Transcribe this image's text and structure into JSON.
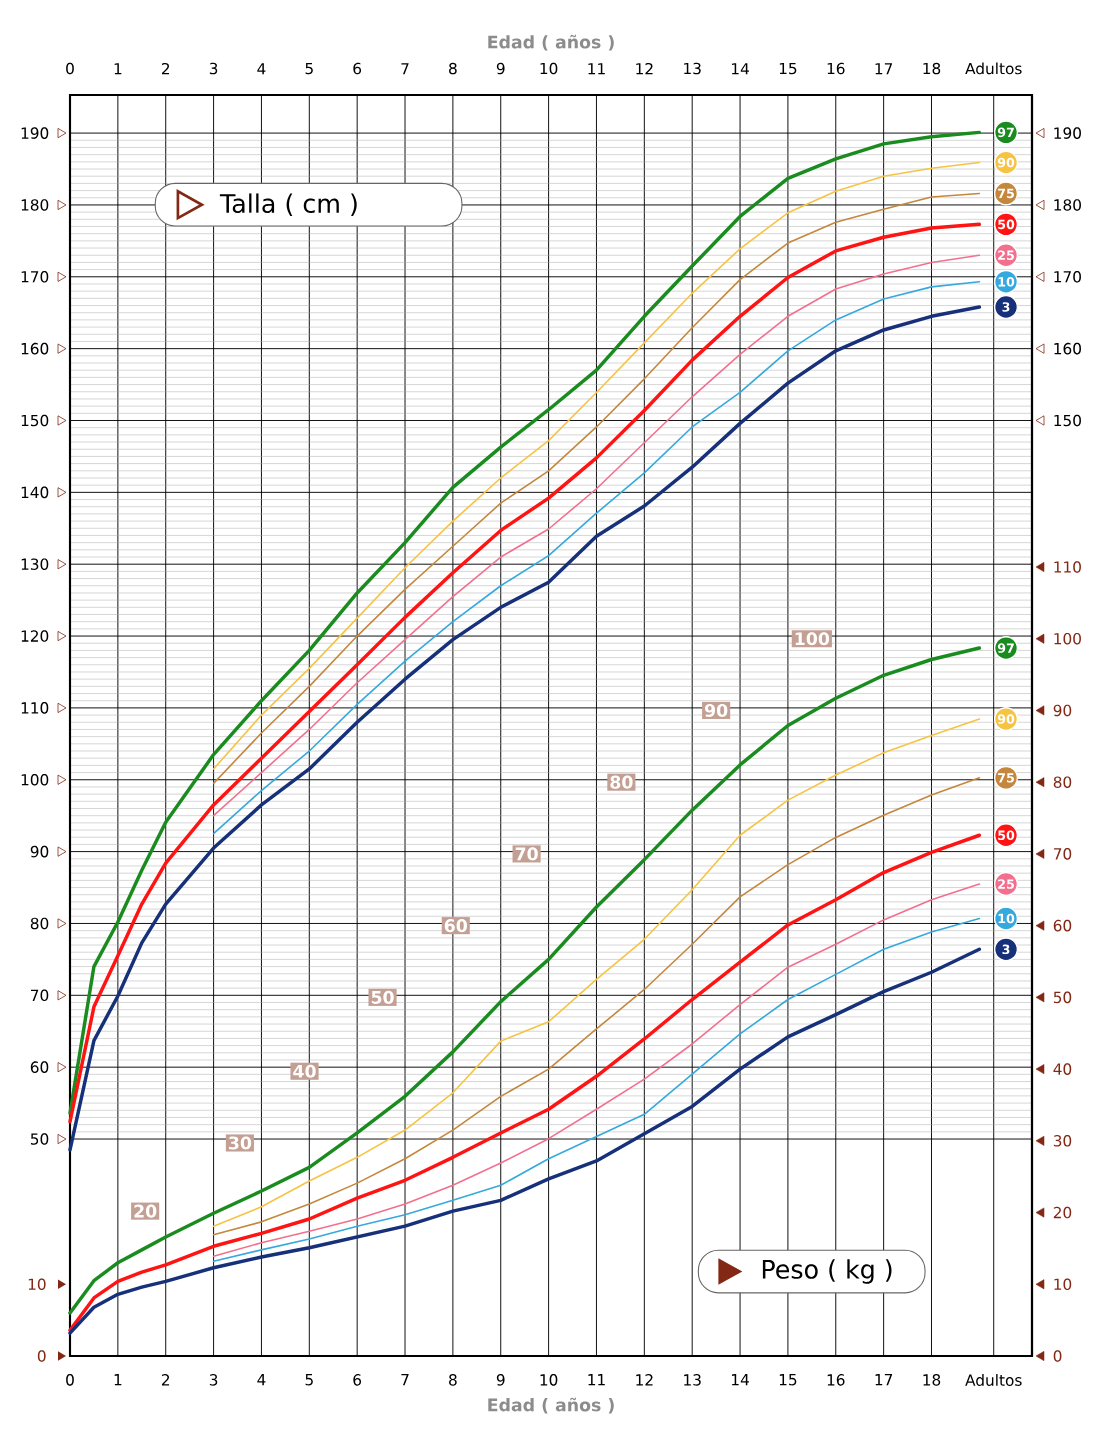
{
  "chart_data": {
    "type": "line",
    "xlabel": "Edad ( años )",
    "x2label": "Edad ( años )",
    "ylabel": "Talla ( cm )",
    "y2label": "Peso ( kg )",
    "xlim": [
      0,
      20.1
    ],
    "x2lim": [
      0,
      20.1
    ],
    "xticks": [
      0,
      1,
      2,
      3,
      4,
      5,
      6,
      7,
      8,
      9,
      10,
      11,
      12,
      13,
      14,
      15,
      16,
      17,
      18,
      {
        "value": 19.3,
        "label": "Adultos"
      }
    ],
    "x2ticks": [
      0,
      1,
      2,
      3,
      4,
      5,
      6,
      7,
      8,
      9,
      10,
      11,
      12,
      13,
      14,
      15,
      16,
      17,
      18,
      {
        "value": 19.3,
        "label": "Adultos"
      }
    ],
    "ylim": [
      19.8,
      195.3
    ],
    "yticks": [
      50,
      60,
      70,
      80,
      90,
      100,
      110,
      120,
      130,
      140,
      150,
      160,
      170,
      180,
      190
    ],
    "y2lim": [
      0,
      175.8
    ],
    "y2ticks": [
      0,
      10,
      20,
      30,
      40,
      50,
      60,
      70,
      80,
      90,
      100,
      110
    ],
    "y3lim": [
      19.8,
      195.3
    ],
    "y3ticks": [
      150,
      160,
      170,
      180,
      190
    ],
    "grid": true,
    "annotations": [
      "20",
      "30",
      "40",
      "50",
      "60",
      "70",
      "80",
      "90",
      "100",
      "0",
      "10"
    ],
    "series": [
      {
        "name": "97",
        "color": "#1a8c1f",
        "x": [
          0,
          0.5,
          1,
          1.5,
          2,
          3,
          4,
          5,
          6,
          7,
          8,
          9,
          10,
          11,
          12,
          13,
          14,
          15,
          16,
          17,
          18,
          19
        ],
        "values": [
          53.6,
          74,
          80.2,
          87.4,
          94.1,
          103.5,
          111,
          118,
          126,
          133,
          140.7,
          146.3,
          151.5,
          157,
          164.5,
          171.5,
          178.4,
          183.7,
          186.4,
          188.5,
          189.5,
          190.1
        ]
      },
      {
        "name": "90",
        "color": "#f7c343",
        "x": [
          3,
          4,
          5,
          6,
          7,
          8,
          9,
          10,
          11,
          12,
          13,
          14,
          15,
          16,
          17,
          18,
          19
        ],
        "values": [
          101.5,
          109,
          115.5,
          122.5,
          129.5,
          136,
          142,
          147.2,
          153.9,
          160.8,
          167.7,
          173.9,
          178.9,
          181.9,
          184,
          185.1,
          185.9
        ]
      },
      {
        "name": "75",
        "color": "#c4873d",
        "x": [
          3,
          4,
          5,
          6,
          7,
          8,
          9,
          10,
          11,
          12,
          13,
          14,
          15,
          16,
          17,
          18,
          19
        ],
        "values": [
          99.5,
          106.5,
          113,
          120,
          126.5,
          132.5,
          138.5,
          143,
          149.1,
          155.8,
          162.9,
          169.6,
          174.7,
          177.6,
          179.4,
          181.1,
          181.6
        ]
      },
      {
        "name": "50",
        "color": "#ff1414",
        "x": [
          0,
          0.5,
          1,
          1.5,
          2,
          3,
          4,
          5,
          6,
          7,
          8,
          9,
          10,
          11,
          12,
          13,
          14,
          15,
          16,
          17,
          18,
          19
        ],
        "values": [
          52.4,
          68.4,
          75.5,
          82.7,
          88.4,
          96.5,
          103,
          109.5,
          116,
          122.6,
          128.8,
          134.7,
          139.2,
          144.8,
          151.4,
          158.4,
          164.5,
          169.9,
          173.6,
          175.5,
          176.8,
          177.3
        ]
      },
      {
        "name": "25",
        "color": "#f2708e",
        "x": [
          3,
          4,
          5,
          6,
          7,
          8,
          9,
          10,
          11,
          12,
          13,
          14,
          15,
          16,
          17,
          18,
          19
        ],
        "values": [
          95,
          101,
          107,
          113.5,
          119.5,
          125.5,
          131,
          134.9,
          140.5,
          146.9,
          153.3,
          159.2,
          164.5,
          168.3,
          170.4,
          172,
          173
        ]
      },
      {
        "name": "10",
        "color": "#35a9de",
        "x": [
          3,
          4,
          5,
          6,
          7,
          8,
          9,
          10,
          11,
          12,
          13,
          14,
          15,
          16,
          17,
          18,
          19
        ],
        "values": [
          92.5,
          98.5,
          104,
          110.5,
          116.5,
          122,
          127,
          131.2,
          137.1,
          142.7,
          149.1,
          153.9,
          159.7,
          164,
          166.9,
          168.6,
          169.3
        ]
      },
      {
        "name": "3",
        "color": "#16307a",
        "x": [
          0,
          0.5,
          1,
          1.5,
          2,
          3,
          4,
          5,
          6,
          7,
          8,
          9,
          10,
          11,
          12,
          13,
          14,
          15,
          16,
          17,
          18,
          19
        ],
        "values": [
          48.5,
          63.7,
          69.9,
          77.3,
          82.7,
          90.5,
          96.5,
          101.5,
          108,
          114,
          119.5,
          124,
          127.5,
          133.9,
          138.1,
          143.5,
          149.6,
          155.2,
          159.7,
          162.6,
          164.5,
          165.8
        ]
      },
      {
        "name": "97",
        "color": "#1a8c1f",
        "axis": "y2",
        "x": [
          0,
          0.5,
          1,
          1.5,
          2,
          3,
          4,
          5,
          6,
          7,
          8,
          9,
          10,
          11,
          12,
          13,
          14,
          15,
          16,
          17,
          18,
          19
        ],
        "values": [
          6,
          10.5,
          13,
          14.8,
          16.6,
          19.9,
          23,
          26.3,
          31.1,
          36.2,
          42.4,
          49.4,
          55.3,
          62.6,
          69.2,
          76.1,
          82.4,
          87.9,
          91.7,
          94.9,
          97.1,
          98.7
        ]
      },
      {
        "name": "90",
        "color": "#f7c343",
        "axis": "y2",
        "x": [
          3,
          4,
          5,
          6,
          7,
          8,
          9,
          10,
          11,
          12,
          13,
          14,
          15,
          16,
          17,
          18,
          19
        ],
        "values": [
          18.1,
          20.8,
          24.4,
          27.7,
          31.5,
          36.7,
          43.9,
          46.6,
          52.5,
          58.1,
          65,
          72.6,
          77.5,
          81,
          84.1,
          86.5,
          88.8
        ]
      },
      {
        "name": "75",
        "color": "#c4873d",
        "axis": "y2",
        "x": [
          3,
          4,
          5,
          6,
          7,
          8,
          9,
          10,
          11,
          12,
          13,
          14,
          15,
          16,
          17,
          18,
          19
        ],
        "values": [
          16.9,
          18.7,
          21.2,
          24.1,
          27.5,
          31.5,
          36.2,
          40,
          45.6,
          51.1,
          57.4,
          64,
          68.5,
          72.3,
          75.4,
          78.2,
          80.6
        ]
      },
      {
        "name": "50",
        "color": "#ff1414",
        "axis": "y2",
        "x": [
          0,
          0.5,
          1,
          1.5,
          2,
          3,
          4,
          5,
          6,
          7,
          8,
          9,
          10,
          11,
          12,
          13,
          14,
          15,
          16,
          17,
          18,
          19
        ],
        "values": [
          3.6,
          8.1,
          10.4,
          11.7,
          12.7,
          15.3,
          17.1,
          19.1,
          22,
          24.5,
          27.7,
          31.1,
          34.4,
          39,
          44.2,
          49.7,
          54.9,
          60.1,
          63.6,
          67.4,
          70.2,
          72.6
        ]
      },
      {
        "name": "25",
        "color": "#f2708e",
        "axis": "y2",
        "x": [
          3,
          4,
          5,
          6,
          7,
          8,
          9,
          10,
          11,
          12,
          13,
          14,
          15,
          16,
          17,
          18,
          19
        ],
        "values": [
          13.9,
          15.8,
          17.4,
          19.1,
          21.2,
          23.8,
          26.9,
          30.3,
          34.4,
          38.6,
          43.5,
          49,
          54.2,
          57.4,
          60.8,
          63.6,
          65.8
        ]
      },
      {
        "name": "10",
        "color": "#35a9de",
        "axis": "y2",
        "x": [
          3,
          4,
          5,
          6,
          7,
          8,
          9,
          10,
          11,
          12,
          13,
          14,
          15,
          16,
          17,
          18,
          19
        ],
        "values": [
          13.2,
          14.8,
          16.3,
          18.1,
          19.7,
          21.7,
          23.8,
          27.5,
          30.6,
          33.7,
          39.3,
          44.9,
          49.7,
          53.2,
          56.7,
          59.1,
          61
        ]
      },
      {
        "name": "3",
        "color": "#16307a",
        "axis": "y2",
        "x": [
          0,
          0.5,
          1,
          1.5,
          2,
          3,
          4,
          5,
          6,
          7,
          8,
          9,
          10,
          11,
          12,
          13,
          14,
          15,
          16,
          17,
          18,
          19
        ],
        "values": [
          3.2,
          6.8,
          8.6,
          9.6,
          10.4,
          12.3,
          13.8,
          15.1,
          16.6,
          18.1,
          20.2,
          21.7,
          24.7,
          27.2,
          31,
          34.8,
          40,
          44.5,
          47.6,
          50.8,
          53.5,
          56.7
        ]
      }
    ]
  }
}
